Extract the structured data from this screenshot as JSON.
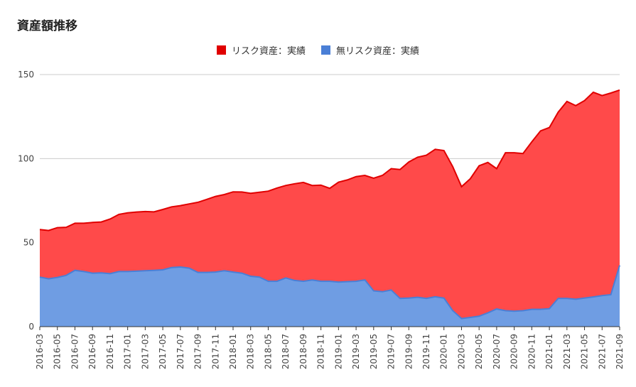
{
  "chart_data": {
    "type": "area",
    "stacked": true,
    "title": "資産額推移",
    "xlabel": "",
    "ylabel": "",
    "ylim": [
      0,
      150
    ],
    "yticks": [
      "0",
      "50",
      "100",
      "150"
    ],
    "grid": true,
    "legend_position": "top",
    "x": [
      "2016-03",
      "2016-04",
      "2016-05",
      "2016-06",
      "2016-07",
      "2016-08",
      "2016-09",
      "2016-10",
      "2016-11",
      "2016-12",
      "2017-01",
      "2017-02",
      "2017-03",
      "2017-04",
      "2017-05",
      "2017-06",
      "2017-07",
      "2017-08",
      "2017-09",
      "2017-10",
      "2017-11",
      "2017-12",
      "2018-01",
      "2018-02",
      "2018-03",
      "2018-04",
      "2018-05",
      "2018-06",
      "2018-07",
      "2018-08",
      "2018-09",
      "2018-10",
      "2018-11",
      "2018-12",
      "2019-01",
      "2019-02",
      "2019-03",
      "2019-04",
      "2019-05",
      "2019-06",
      "2019-07",
      "2019-08",
      "2019-09",
      "2019-10",
      "2019-11",
      "2019-12",
      "2020-01",
      "2020-02",
      "2020-03",
      "2020-04",
      "2020-05",
      "2020-06",
      "2020-07",
      "2020-08",
      "2020-09",
      "2020-10",
      "2020-11",
      "2020-12",
      "2021-01",
      "2021-02",
      "2021-03",
      "2021-04",
      "2021-05",
      "2021-06",
      "2021-07",
      "2021-08",
      "2021-09"
    ],
    "xtick_labels": [
      "2016-03",
      "2016-05",
      "2016-07",
      "2016-09",
      "2016-11",
      "2017-01",
      "2017-03",
      "2017-05",
      "2017-07",
      "2017-09",
      "2017-11",
      "2018-01",
      "2018-03",
      "2018-05",
      "2018-07",
      "2018-09",
      "2018-11",
      "2019-01",
      "2019-03",
      "2019-05",
      "2019-07",
      "2019-09",
      "2019-11",
      "2020-01",
      "2020-03",
      "2020-05",
      "2020-07",
      "2020-09",
      "2020-11",
      "2021-01",
      "2021-03",
      "2021-05",
      "2021-07",
      "2021-09"
    ],
    "series": [
      {
        "name": "無リスク資産：実績",
        "color": "#6f9de3",
        "stroke": "#4a7fd6",
        "values": [
          29.5,
          28.5,
          29.3,
          30.5,
          33.5,
          32.8,
          31.8,
          32.0,
          31.5,
          32.8,
          32.8,
          33.0,
          33.3,
          33.5,
          33.8,
          35.2,
          35.5,
          34.8,
          32.3,
          32.3,
          32.5,
          33.3,
          32.5,
          31.8,
          30.0,
          29.5,
          27.0,
          27.0,
          29.0,
          27.5,
          27.0,
          27.8,
          27.0,
          27.0,
          26.5,
          26.8,
          27.0,
          27.8,
          21.3,
          20.8,
          21.8,
          16.8,
          17.0,
          17.5,
          16.8,
          17.8,
          17.0,
          9.5,
          4.8,
          5.5,
          6.2,
          8.2,
          10.5,
          9.5,
          9.2,
          9.5,
          10.3,
          10.3,
          10.7,
          16.8,
          16.8,
          16.3,
          17.0,
          17.7,
          18.5,
          19.0,
          36.5
        ]
      },
      {
        "name": "リスク資産：実績",
        "color": "#ff4a4a",
        "stroke": "#e00000",
        "values": [
          28.3,
          28.7,
          29.6,
          28.6,
          28.0,
          28.7,
          30.2,
          30.3,
          32.5,
          34.0,
          34.9,
          35.2,
          35.2,
          34.8,
          35.9,
          36.1,
          36.5,
          38.2,
          41.7,
          43.4,
          45.0,
          45.3,
          47.7,
          48.3,
          49.3,
          50.5,
          53.6,
          55.5,
          55.0,
          57.5,
          58.8,
          56.2,
          57.2,
          55.3,
          59.5,
          60.5,
          62.3,
          62.2,
          67.0,
          69.2,
          72.2,
          76.7,
          81.0,
          83.3,
          85.2,
          87.7,
          87.8,
          85.7,
          78.5,
          82.5,
          89.5,
          89.5,
          83.5,
          94.0,
          94.3,
          93.5,
          99.7,
          106.2,
          107.8,
          110.8,
          117.2,
          115.2,
          117.5,
          121.8,
          119.0,
          120.0,
          104.3
        ]
      }
    ]
  }
}
